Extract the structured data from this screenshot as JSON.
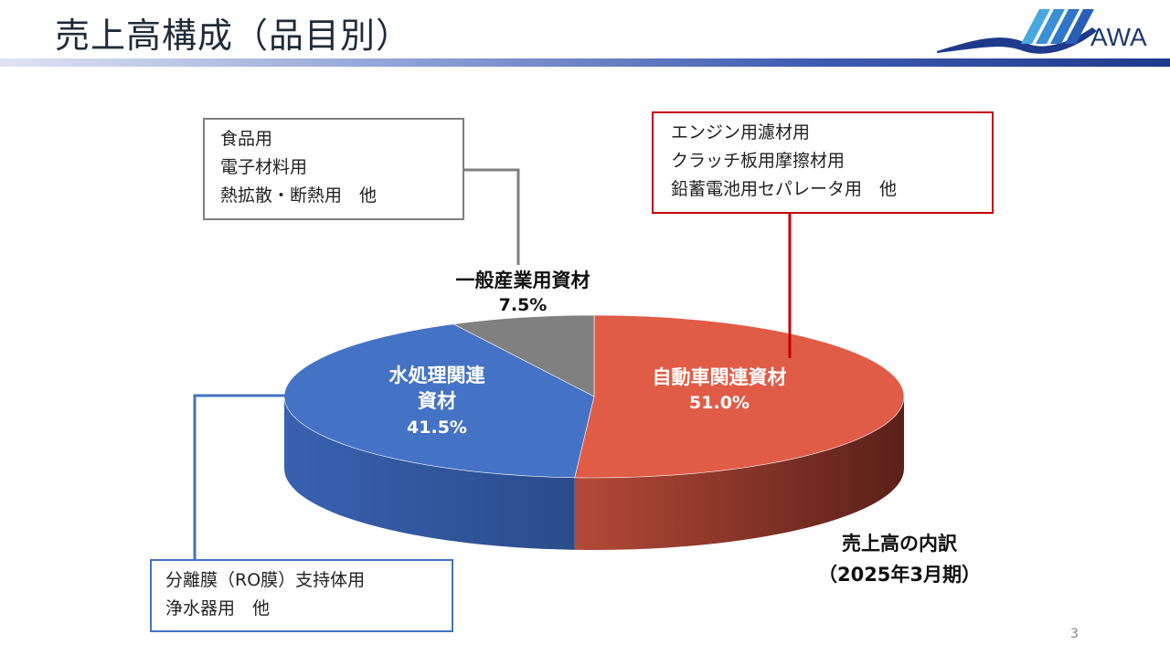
{
  "slide": {
    "title": "売上高構成（品目別）",
    "logo_text": "AWA",
    "page_number": "3"
  },
  "callouts": {
    "general": [
      "食品用",
      "電子材料用",
      "熱拡散・断熱用　他"
    ],
    "automotive": [
      "エンジン用濾材用",
      "クラッチ板用摩擦材用",
      "鉛蓄電池用セパレータ用　他"
    ],
    "water": [
      "分離膜（RO膜）支持体用",
      "浄水器用　他"
    ]
  },
  "colors": {
    "automotive": "#e05c47",
    "water": "#4472c4",
    "general": "#808080",
    "header_bar": "#1e3a8a"
  },
  "chart_data": {
    "type": "pie",
    "style": "3d",
    "categories": [
      "自動車関連資材",
      "水処理関連資材",
      "一般産業用資材"
    ],
    "values": [
      51.0,
      41.5,
      7.5
    ],
    "value_labels": [
      "51.0%",
      "41.5%",
      "7.5%"
    ],
    "slice_labels": [
      [
        "自動車関連資材"
      ],
      [
        "水処理関連",
        "資材"
      ],
      [
        "一般産業用資材"
      ]
    ],
    "annotation": [
      "売上高の内訳",
      "（2025年3月期）"
    ]
  }
}
